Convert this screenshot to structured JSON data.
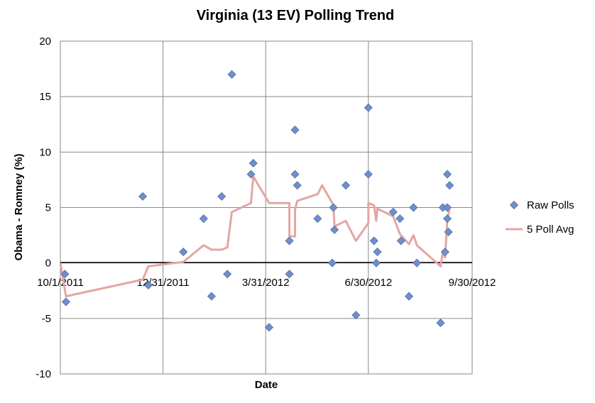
{
  "chart_data": {
    "type": "scatter",
    "title": "Virginia (13 EV) Polling Trend",
    "xlabel": "Date",
    "ylabel": "Obama - Romney (%)",
    "xlim": [
      "2011-10-01",
      "2012-09-30"
    ],
    "ylim": [
      -10,
      20
    ],
    "x_ticks": [
      "10/1/2011",
      "12/31/2011",
      "3/31/2012",
      "6/30/2012",
      "9/30/2012"
    ],
    "y_ticks": [
      -10,
      -5,
      0,
      5,
      10,
      15,
      20
    ],
    "grid": true,
    "legend_position": "right",
    "series": [
      {
        "name": "Raw Polls",
        "kind": "scatter",
        "color": "#6f8fc8",
        "points": [
          {
            "x": "2011-10-05",
            "y": -1
          },
          {
            "x": "2011-10-06",
            "y": -3.5
          },
          {
            "x": "2011-12-13",
            "y": 6
          },
          {
            "x": "2011-12-18",
            "y": -2
          },
          {
            "x": "2012-01-18",
            "y": 1
          },
          {
            "x": "2012-02-05",
            "y": 4
          },
          {
            "x": "2012-02-12",
            "y": -3
          },
          {
            "x": "2012-02-21",
            "y": 6
          },
          {
            "x": "2012-02-26",
            "y": -1
          },
          {
            "x": "2012-03-01",
            "y": 17
          },
          {
            "x": "2012-03-18",
            "y": 8
          },
          {
            "x": "2012-03-20",
            "y": 9
          },
          {
            "x": "2012-04-03",
            "y": -5.8
          },
          {
            "x": "2012-04-21",
            "y": 2
          },
          {
            "x": "2012-04-21",
            "y": -1
          },
          {
            "x": "2012-04-26",
            "y": 12
          },
          {
            "x": "2012-04-26",
            "y": 8
          },
          {
            "x": "2012-04-28",
            "y": 7
          },
          {
            "x": "2012-05-16",
            "y": 4
          },
          {
            "x": "2012-05-29",
            "y": 0
          },
          {
            "x": "2012-05-30",
            "y": 5
          },
          {
            "x": "2012-05-31",
            "y": 3
          },
          {
            "x": "2012-06-10",
            "y": 7
          },
          {
            "x": "2012-06-19",
            "y": -4.7
          },
          {
            "x": "2012-06-30",
            "y": 14
          },
          {
            "x": "2012-06-30",
            "y": 8
          },
          {
            "x": "2012-07-05",
            "y": 2
          },
          {
            "x": "2012-07-07",
            "y": 0
          },
          {
            "x": "2012-07-08",
            "y": 1
          },
          {
            "x": "2012-07-22",
            "y": 4.6
          },
          {
            "x": "2012-07-28",
            "y": 4
          },
          {
            "x": "2012-07-29",
            "y": 2
          },
          {
            "x": "2012-08-05",
            "y": -3
          },
          {
            "x": "2012-08-09",
            "y": 5
          },
          {
            "x": "2012-08-12",
            "y": 0
          },
          {
            "x": "2012-09-02",
            "y": -5.4
          },
          {
            "x": "2012-09-04",
            "y": 5
          },
          {
            "x": "2012-09-06",
            "y": 1
          },
          {
            "x": "2012-09-08",
            "y": 8
          },
          {
            "x": "2012-09-08",
            "y": 4
          },
          {
            "x": "2012-09-08",
            "y": 5
          },
          {
            "x": "2012-09-09",
            "y": 2.8
          },
          {
            "x": "2012-09-10",
            "y": 7
          }
        ]
      },
      {
        "name": "5 Poll Avg",
        "kind": "line",
        "color": "#e3a6a3",
        "points": [
          {
            "x": "2011-10-01",
            "y": 0
          },
          {
            "x": "2011-10-06",
            "y": -3
          },
          {
            "x": "2011-12-13",
            "y": -1.5
          },
          {
            "x": "2011-12-18",
            "y": -0.3
          },
          {
            "x": "2012-01-18",
            "y": 0.1
          },
          {
            "x": "2012-02-05",
            "y": 1.6
          },
          {
            "x": "2012-02-12",
            "y": 1.2
          },
          {
            "x": "2012-02-21",
            "y": 1.2
          },
          {
            "x": "2012-02-26",
            "y": 1.4
          },
          {
            "x": "2012-03-01",
            "y": 4.6
          },
          {
            "x": "2012-03-18",
            "y": 5.4
          },
          {
            "x": "2012-03-20",
            "y": 7.8
          },
          {
            "x": "2012-04-03",
            "y": 5.4
          },
          {
            "x": "2012-04-21",
            "y": 5.4
          },
          {
            "x": "2012-04-21",
            "y": 2.4
          },
          {
            "x": "2012-04-26",
            "y": 2.4
          },
          {
            "x": "2012-04-26",
            "y": 4.8
          },
          {
            "x": "2012-04-28",
            "y": 5.6
          },
          {
            "x": "2012-05-16",
            "y": 6.2
          },
          {
            "x": "2012-05-20",
            "y": 7
          },
          {
            "x": "2012-05-29",
            "y": 5.4
          },
          {
            "x": "2012-05-30",
            "y": 5.2
          },
          {
            "x": "2012-05-31",
            "y": 3.3
          },
          {
            "x": "2012-06-10",
            "y": 3.8
          },
          {
            "x": "2012-06-19",
            "y": 2
          },
          {
            "x": "2012-06-30",
            "y": 3.6
          },
          {
            "x": "2012-06-30",
            "y": 5.4
          },
          {
            "x": "2012-07-05",
            "y": 5.2
          },
          {
            "x": "2012-07-07",
            "y": 3.8
          },
          {
            "x": "2012-07-08",
            "y": 4.9
          },
          {
            "x": "2012-07-22",
            "y": 4.2
          },
          {
            "x": "2012-07-28",
            "y": 2.6
          },
          {
            "x": "2012-08-05",
            "y": 1.7
          },
          {
            "x": "2012-08-09",
            "y": 2.5
          },
          {
            "x": "2012-08-12",
            "y": 1.6
          },
          {
            "x": "2012-09-02",
            "y": -0.3
          },
          {
            "x": "2012-09-04",
            "y": 1
          },
          {
            "x": "2012-09-06",
            "y": 0.5
          },
          {
            "x": "2012-09-08",
            "y": 4
          },
          {
            "x": "2012-09-10",
            "y": 4.8
          }
        ]
      }
    ]
  }
}
